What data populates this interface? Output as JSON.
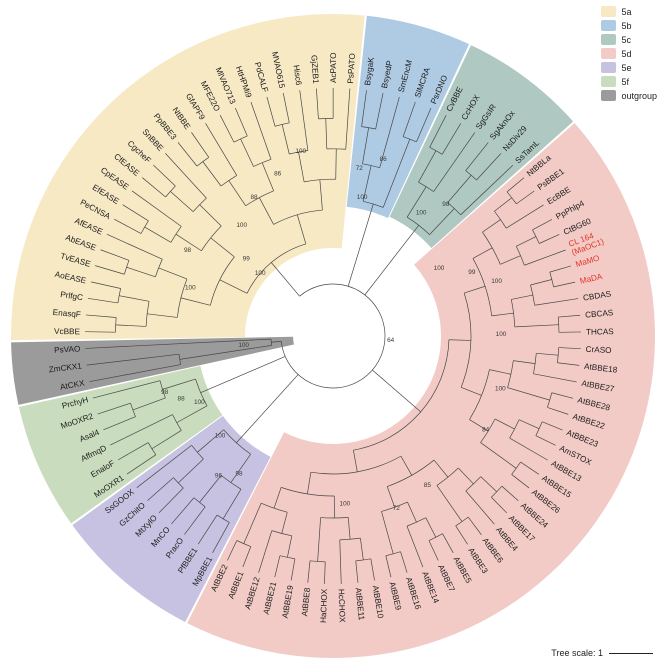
{
  "figure": {
    "background": "#ffffff"
  },
  "legend": {
    "items": [
      {
        "label": "5a",
        "color": "#F6E9C4"
      },
      {
        "label": "5b",
        "color": "#AFCBE4"
      },
      {
        "label": "5c",
        "color": "#AFC9C2"
      },
      {
        "label": "5d",
        "color": "#F2CBC6"
      },
      {
        "label": "5e",
        "color": "#C8C2E2"
      },
      {
        "label": "5f",
        "color": "#C9DCBD"
      },
      {
        "label": "outgroup",
        "color": "#9B9B9B"
      }
    ]
  },
  "scale_bar": {
    "label": "Tree scale: 1"
  },
  "chart_data": {
    "type": "circular_phylogenetic_tree",
    "start_angle_deg": 271,
    "highlight": {
      "taxa": [
        "CL 164\n(MaOC1)",
        "MaMO",
        "MaDA"
      ],
      "color": "#E5352B"
    },
    "clades": [
      {
        "name": "5a",
        "color": "#F6E9C4",
        "inner_radius": 88,
        "root_radius": 96,
        "taxa": [
          "VcBBE",
          "EnasqF",
          "PrlfgC",
          "AoEASE",
          "TvEASE",
          "AbEASE",
          "AfEASE",
          "PeCNSA",
          "EfEASE",
          "CpEASE",
          "CfEASE",
          "CgcheF",
          "SnBBE",
          "PpBBE3",
          "NtBBE",
          "GfAPF9",
          "MFE22O",
          "MlVAO713",
          "HtHPMi9",
          "PdCALF",
          "MVAO615",
          "Hisc6",
          "GjZEB1",
          "AcPATO",
          "PsPATO"
        ]
      },
      {
        "name": "5b",
        "color": "#AFCBE4",
        "inner_radius": 130,
        "root_radius": 138,
        "taxa": [
          "BsygaK",
          "BsyedP",
          "SmEncM",
          "SlMCRA",
          "PsrDNO"
        ]
      },
      {
        "name": "5c",
        "color": "#AFC9C2",
        "inner_radius": 132,
        "root_radius": 140,
        "taxa": [
          "CvBBE",
          "CcHOX",
          "SgGsIR",
          "SgAknOx",
          "NsDiv29",
          "SsTamL"
        ]
      },
      {
        "name": "5d",
        "color": "#F2CBC6",
        "inner_radius": 108,
        "root_radius": 116,
        "taxa": [
          "NtBBLa",
          "PsBBE1",
          "EcBBE",
          "PpPhlp4",
          "CtBG60",
          "CL 164\n(MaOC1)",
          "MaMO",
          "MaDA",
          "CBDAS",
          "CBCAS",
          "THCAS",
          "CrASO",
          "AtBBE18",
          "AtBBE27",
          "AtBBE28",
          "AtBBE22",
          "AtBBE23",
          "AmSTOX",
          "AtBBE13",
          "AtBBE15",
          "AtBBE26",
          "AtBBE24",
          "AtBBE17",
          "AtBBE4",
          "AtBBE6",
          "AtBBE3",
          "AtBBE5",
          "AtBBE7",
          "AtBBE14",
          "AtBBE16",
          "AtBBE9",
          "AtBBE10",
          "AtBBE11",
          "HcCHOX",
          "HaCHOX",
          "AtBBE8",
          "AtBBE19",
          "AtBBE21",
          "AtBBE12",
          "AtBBE1",
          "AtBBE2"
        ]
      },
      {
        "name": "5e",
        "color": "#C8C2E2",
        "inner_radius": 136,
        "root_radius": 144,
        "taxa": [
          "MpBBE1",
          "PfBBE1",
          "PracO",
          "MnCO",
          "MtXylO",
          "GzChitO",
          "SsGOOX"
        ]
      },
      {
        "name": "5f",
        "color": "#C9DCBD",
        "inner_radius": 136,
        "root_radius": 144,
        "taxa": [
          "MoOXR1",
          "EnaloF",
          "AffmqD",
          "Asal4",
          "MoOXR2",
          "PrchyH"
        ]
      },
      {
        "name": "outgroup",
        "color": "#9B9B9B",
        "inner_radius": 40,
        "root_radius": 62,
        "taxa": [
          "AtCKX",
          "ZmCKX1",
          "PsVAO"
        ]
      }
    ],
    "bootstrap_annotations": [
      {
        "value": "64",
        "angle": 96,
        "radius": 58
      },
      {
        "value": "100",
        "angle": 310,
        "radius": 95
      },
      {
        "value": "99",
        "angle": 311,
        "radius": 115
      },
      {
        "value": "100",
        "angle": 320,
        "radius": 142
      },
      {
        "value": "88",
        "angle": 330,
        "radius": 158
      },
      {
        "value": "86",
        "angle": 341,
        "radius": 170
      },
      {
        "value": "100",
        "angle": 350,
        "radius": 186
      },
      {
        "value": "98",
        "angle": 300,
        "radius": 168
      },
      {
        "value": "100",
        "angle": 288,
        "radius": 150
      },
      {
        "value": "100",
        "angle": 12,
        "radius": 140
      },
      {
        "value": "72",
        "angle": 9,
        "radius": 168
      },
      {
        "value": "86",
        "angle": 16,
        "radius": 182
      },
      {
        "value": "100",
        "angle": 36,
        "radius": 150
      },
      {
        "value": "98",
        "angle": 41,
        "radius": 172
      },
      {
        "value": "100",
        "angle": 58,
        "radius": 125
      },
      {
        "value": "99",
        "angle": 66,
        "radius": 152
      },
      {
        "value": "100",
        "angle": 72,
        "radius": 172
      },
      {
        "value": "100",
        "angle": 90,
        "radius": 168
      },
      {
        "value": "100",
        "angle": 108,
        "radius": 176
      },
      {
        "value": "84",
        "angle": 122,
        "radius": 180
      },
      {
        "value": "85",
        "angle": 148,
        "radius": 178
      },
      {
        "value": "72",
        "angle": 160,
        "radius": 185
      },
      {
        "value": "100",
        "angle": 176,
        "radius": 170
      },
      {
        "value": "98",
        "angle": 214,
        "radius": 168
      },
      {
        "value": "96",
        "angle": 219,
        "radius": 182
      },
      {
        "value": "100",
        "angle": 228,
        "radius": 152
      },
      {
        "value": "100",
        "angle": 243,
        "radius": 150
      },
      {
        "value": "88",
        "angle": 247,
        "radius": 165
      },
      {
        "value": "98",
        "angle": 251,
        "radius": 178
      },
      {
        "value": "100",
        "angle": 263,
        "radius": 90
      }
    ]
  }
}
